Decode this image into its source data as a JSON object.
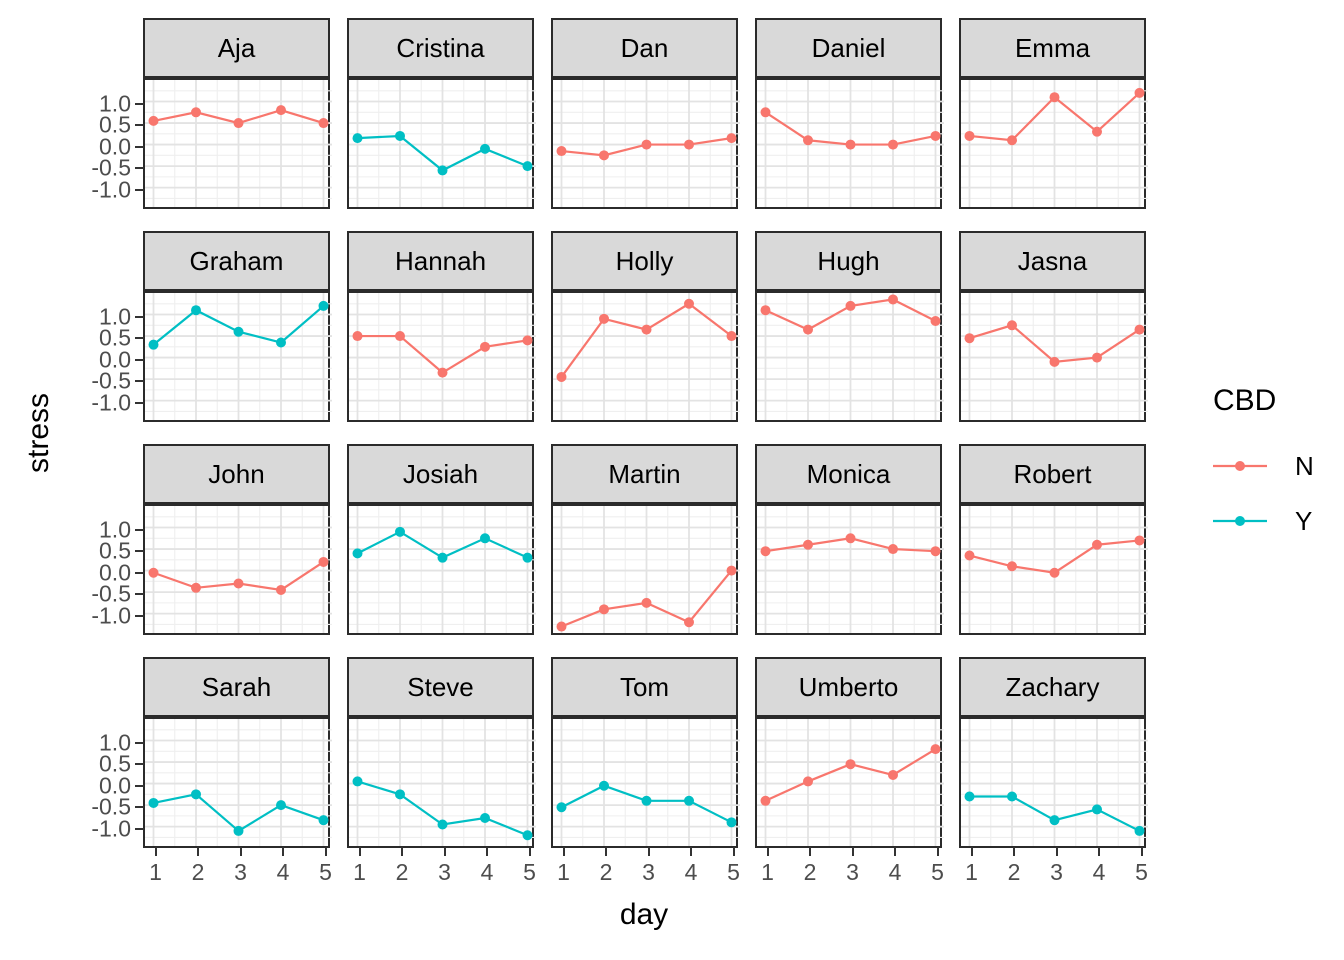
{
  "figure": {
    "y_axis_title": "stress",
    "x_axis_title": "day"
  },
  "legend": {
    "title": "CBD",
    "entries": [
      {
        "label": "N",
        "color": "#F8766D"
      },
      {
        "label": "Y",
        "color": "#00BFC4"
      }
    ],
    "position": "right"
  },
  "chart_data": {
    "type": "line",
    "facet_by": "person",
    "grid": "on",
    "title": "",
    "xlabel": "day",
    "ylabel": "stress",
    "x": [
      1,
      2,
      3,
      4,
      5
    ],
    "x_tick_labels": [
      "1",
      "2",
      "3",
      "4",
      "5"
    ],
    "y_tick_labels": [
      "1.0",
      "0.5",
      "0.0",
      "-0.5",
      "-1.0"
    ],
    "y_tick_values": [
      1.0,
      0.5,
      0.0,
      -0.5,
      -1.0
    ],
    "x_domain": [
      0.8,
      5.2
    ],
    "y_domain": [
      -1.45,
      1.5
    ],
    "x_major_breaks": [
      1,
      2,
      3,
      4,
      5
    ],
    "x_minor_breaks": [
      1.5,
      2.5,
      3.5,
      4.5
    ],
    "y_major_breaks": [
      1.0,
      0.5,
      0.0,
      -0.5,
      -1.0
    ],
    "y_minor_breaks": [
      1.25,
      0.75,
      0.25,
      -0.25,
      -0.75,
      -1.25
    ],
    "legend_title": "CBD",
    "series_colors": {
      "N": "#F8766D",
      "Y": "#00BFC4"
    },
    "facets": [
      {
        "name": "Aja",
        "cbd": "N",
        "values": [
          0.55,
          0.75,
          0.5,
          0.8,
          0.5
        ]
      },
      {
        "name": "Cristina",
        "cbd": "Y",
        "values": [
          0.15,
          0.2,
          -0.6,
          -0.1,
          -0.5
        ]
      },
      {
        "name": "Dan",
        "cbd": "N",
        "values": [
          -0.15,
          -0.25,
          0.0,
          0.0,
          0.15
        ]
      },
      {
        "name": "Daniel",
        "cbd": "N",
        "values": [
          0.75,
          0.1,
          0.0,
          0.0,
          0.2
        ]
      },
      {
        "name": "Emma",
        "cbd": "N",
        "values": [
          0.2,
          0.1,
          1.1,
          0.3,
          1.2
        ]
      },
      {
        "name": "Graham",
        "cbd": "Y",
        "values": [
          0.3,
          1.1,
          0.6,
          0.35,
          1.2
        ]
      },
      {
        "name": "Hannah",
        "cbd": "N",
        "values": [
          0.5,
          0.5,
          -0.35,
          0.25,
          0.4
        ]
      },
      {
        "name": "Holly",
        "cbd": "N",
        "values": [
          -0.45,
          0.9,
          0.65,
          1.25,
          0.5
        ]
      },
      {
        "name": "Hugh",
        "cbd": "N",
        "values": [
          1.1,
          0.65,
          1.2,
          1.35,
          0.85
        ]
      },
      {
        "name": "Jasna",
        "cbd": "N",
        "values": [
          0.45,
          0.75,
          -0.1,
          0.0,
          0.65
        ]
      },
      {
        "name": "John",
        "cbd": "N",
        "values": [
          -0.05,
          -0.4,
          -0.3,
          -0.45,
          0.2
        ]
      },
      {
        "name": "Josiah",
        "cbd": "Y",
        "values": [
          0.4,
          0.9,
          0.3,
          0.75,
          0.3
        ]
      },
      {
        "name": "Martin",
        "cbd": "N",
        "values": [
          -1.3,
          -0.9,
          -0.75,
          -1.2,
          0.0
        ]
      },
      {
        "name": "Monica",
        "cbd": "N",
        "values": [
          0.45,
          0.6,
          0.75,
          0.5,
          0.45
        ]
      },
      {
        "name": "Robert",
        "cbd": "N",
        "values": [
          0.35,
          0.1,
          -0.05,
          0.6,
          0.7
        ]
      },
      {
        "name": "Sarah",
        "cbd": "Y",
        "values": [
          -0.45,
          -0.25,
          -1.1,
          -0.5,
          -0.85
        ]
      },
      {
        "name": "Steve",
        "cbd": "Y",
        "values": [
          0.05,
          -0.25,
          -0.95,
          -0.8,
          -1.2
        ]
      },
      {
        "name": "Tom",
        "cbd": "Y",
        "values": [
          -0.55,
          -0.05,
          -0.4,
          -0.4,
          -0.9
        ]
      },
      {
        "name": "Umberto",
        "cbd": "N",
        "values": [
          -0.4,
          0.05,
          0.45,
          0.2,
          0.8
        ]
      },
      {
        "name": "Zachary",
        "cbd": "Y",
        "values": [
          -0.3,
          -0.3,
          -0.85,
          -0.6,
          -1.1
        ]
      }
    ],
    "style": {
      "strip_fill": "#D9D9D9",
      "panel_border": "#2B2B2B",
      "grid_major": "#E3E3E3",
      "grid_minor": "#EFEFEF",
      "axis_text": "#4D4D4D",
      "tick_mark": "#333333"
    }
  }
}
